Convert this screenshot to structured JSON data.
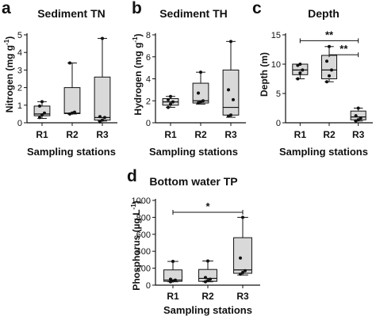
{
  "chart_data": [
    {
      "panel": "a",
      "type": "box",
      "title": "Sediment TN",
      "xlabel": "Sampling stations",
      "ylabel": "Nitrogen (mg g",
      "ylabel_sup": "-1",
      "ylabel_end": ")",
      "ylim": [
        0,
        5
      ],
      "yticks": [
        0,
        1,
        2,
        3,
        4,
        5
      ],
      "categories": [
        "R1",
        "R2",
        "R3"
      ],
      "boxes": [
        {
          "min": 0.25,
          "q1": 0.4,
          "median": 0.5,
          "q3": 0.95,
          "max": 1.2,
          "points": [
            0.3,
            0.45,
            0.55,
            0.95,
            1.2
          ]
        },
        {
          "min": 0.5,
          "q1": 0.52,
          "median": 0.55,
          "q3": 2.0,
          "max": 3.4,
          "points": [
            0.5,
            0.55,
            0.6,
            3.4
          ]
        },
        {
          "min": 0.1,
          "q1": 0.15,
          "median": 0.3,
          "q3": 2.6,
          "max": 4.8,
          "points": [
            0.05,
            0.15,
            0.3,
            0.35,
            4.8
          ]
        }
      ],
      "significance": []
    },
    {
      "panel": "b",
      "type": "box",
      "title": "Sediment TH",
      "xlabel": "Sampling stations",
      "ylabel": "Hydrogen (mg g",
      "ylabel_sup": "-1",
      "ylabel_end": ")",
      "ylim": [
        0,
        8
      ],
      "yticks": [
        0,
        2,
        4,
        6,
        8
      ],
      "categories": [
        "R1",
        "R2",
        "R3"
      ],
      "boxes": [
        {
          "min": 1.4,
          "q1": 1.6,
          "median": 1.9,
          "q3": 2.2,
          "max": 2.4,
          "points": [
            1.4,
            1.7,
            1.9,
            2.1,
            2.4
          ]
        },
        {
          "min": 1.7,
          "q1": 1.8,
          "median": 2.0,
          "q3": 3.6,
          "max": 4.6,
          "points": [
            1.8,
            1.9,
            2.0,
            2.7,
            4.6
          ]
        },
        {
          "min": 0.5,
          "q1": 0.7,
          "median": 1.4,
          "q3": 4.8,
          "max": 7.4,
          "points": [
            0.6,
            0.7,
            2.1,
            3.0,
            7.4
          ]
        }
      ],
      "significance": []
    },
    {
      "panel": "c",
      "type": "box",
      "title": "Depth",
      "xlabel": "Sampling stations",
      "ylabel": "Depth (m)",
      "ylabel_sup": "",
      "ylabel_end": "",
      "ylim": [
        0,
        15
      ],
      "yticks": [
        0,
        5,
        10,
        15
      ],
      "categories": [
        "R1",
        "R2",
        "R3"
      ],
      "boxes": [
        {
          "min": 7.5,
          "q1": 8.2,
          "median": 9.0,
          "q3": 10.0,
          "max": 10.0,
          "points": [
            7.5,
            8.5,
            9.0,
            9.8,
            10.0
          ]
        },
        {
          "min": 7.0,
          "q1": 7.5,
          "median": 9.0,
          "q3": 11.5,
          "max": 13.0,
          "points": [
            7.0,
            8.0,
            9.0,
            10.5,
            13.0
          ]
        },
        {
          "min": 0.3,
          "q1": 0.5,
          "median": 1.0,
          "q3": 2.0,
          "max": 2.5,
          "points": [
            0.3,
            0.5,
            0.8,
            1.2,
            2.5
          ]
        }
      ],
      "significance": [
        {
          "from": 0,
          "to": 2,
          "y": 14.0,
          "label": "**"
        },
        {
          "from": 1,
          "to": 2,
          "y": 11.6,
          "label": "**"
        }
      ]
    },
    {
      "panel": "d",
      "type": "box",
      "title": "Bottom water TP",
      "xlabel": "Sampling stations",
      "ylabel": "Phosphorus (µg L",
      "ylabel_sup": "-1",
      "ylabel_end": ")",
      "ylim": [
        0,
        1000
      ],
      "yticks": [
        0,
        200,
        400,
        600,
        800,
        1000
      ],
      "categories": [
        "R1",
        "R2",
        "R3"
      ],
      "boxes": [
        {
          "min": 40,
          "q1": 45,
          "median": 60,
          "q3": 180,
          "max": 280,
          "points": [
            40,
            50,
            60,
            70,
            280
          ]
        },
        {
          "min": 40,
          "q1": 45,
          "median": 80,
          "q3": 185,
          "max": 285,
          "points": [
            40,
            55,
            70,
            90,
            285
          ]
        },
        {
          "min": 120,
          "q1": 140,
          "median": 180,
          "q3": 560,
          "max": 800,
          "points": [
            130,
            150,
            170,
            320,
            800
          ]
        }
      ],
      "significance": [
        {
          "from": 0,
          "to": 2,
          "y": 860,
          "label": "*"
        }
      ]
    }
  ]
}
